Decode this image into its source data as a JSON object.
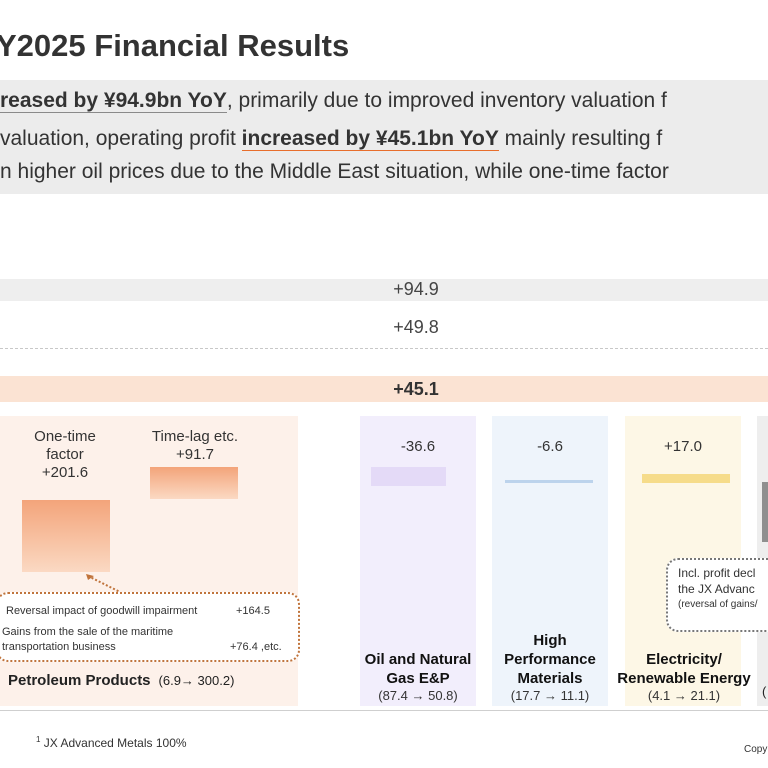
{
  "header": {
    "title": "Y2025 Financial Results"
  },
  "summary": {
    "line1_emph": "reased by ¥94.9bn YoY",
    "line1_rest": ", primarily due to improved inventory valuation f",
    "line2_pre": " valuation, operating profit ",
    "line2_emph": "increased by ¥45.1bn YoY",
    "line2_rest": " mainly resulting f",
    "line3": "n higher oil prices due to the Middle East situation, while one-time factor"
  },
  "bridge": {
    "row1_value": "+94.9",
    "row2_value": "+49.8",
    "row3_value": "+45.1"
  },
  "petroleum": {
    "onetime_label": "One-time factor",
    "onetime_line1": "One-time",
    "onetime_line2": "factor",
    "onetime_value": "+201.6",
    "timelag_label": "Time-lag etc.",
    "timelag_value": "+91.7",
    "callout": [
      {
        "text": "Reversal impact of goodwill impairment",
        "value": "+164.5"
      },
      {
        "text_line1": "Gains from the sale of the maritime",
        "text_line2": "transportation business",
        "value": "+76.4 ,etc."
      }
    ],
    "name": "Petroleum Products",
    "range": "(6.9→ 300.2)"
  },
  "segments": [
    {
      "value": "-36.6",
      "name_line1": "Oil and Natural",
      "name_line2": "Gas E&P",
      "range": "(87.4 → 50.8)",
      "color": "#e4daf7"
    },
    {
      "value": "-6.6",
      "name_line1": "High",
      "name_line2": "Performance",
      "name_line3": "Materials",
      "range": "(17.7 → 11.1)",
      "color": "#bcd3ec"
    },
    {
      "value": "+17.0",
      "name_line1": "Electricity/",
      "name_line2": "Renewable Energy",
      "range": "(4.1 → 21.1)",
      "color": "#f6dc8a"
    }
  ],
  "metals_callout": {
    "line1": "Incl. profit decl",
    "line2": "the JX Advanc",
    "line3": "(reversal of gains/"
  },
  "metals_range_fragment": "(",
  "footnote": "JX Advanced Metals 100%",
  "footnote_mark": "1",
  "copyright_fragment": "Copy"
}
